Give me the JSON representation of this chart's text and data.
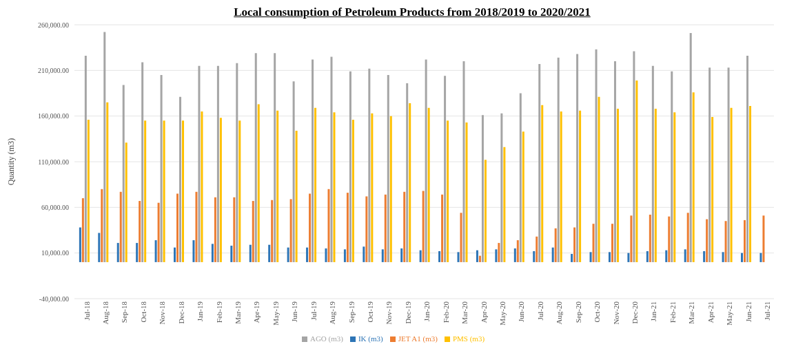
{
  "chart_data": {
    "type": "bar",
    "title": "Local consumption of Petroleum Products from 2018/2019 to 2020/2021",
    "ylabel": "Quantity (m3)",
    "categories": [
      "Jul-18",
      "Aug-18",
      "Sep-18",
      "Oct-18",
      "Nov-18",
      "Dec-18",
      "Jan-19",
      "Feb-19",
      "Mar-19",
      "Apr-19",
      "May-19",
      "Jun-19",
      "Jul-19",
      "Aug-19",
      "Sep-19",
      "Oct-19",
      "Nov-19",
      "Dec-19",
      "Jan-20",
      "Feb-20",
      "Mar-20",
      "Apr-20",
      "May-20",
      "Jun-20",
      "Jul-20",
      "Aug-20",
      "Sep-20",
      "Oct-20",
      "Nov-20",
      "Dec-20",
      "Jan-21",
      "Feb-21",
      "Mar-21",
      "Apr-21",
      "May-21",
      "Jun-21",
      "Jul-21"
    ],
    "series": [
      {
        "name": "IK (m3)",
        "color": "#2e75b6",
        "values": [
          38000,
          32000,
          21000,
          21000,
          24000,
          16000,
          24000,
          20000,
          18000,
          19000,
          19000,
          16000,
          16000,
          15000,
          14000,
          17000,
          14000,
          15000,
          13000,
          12000,
          11000,
          13000,
          14000,
          15000,
          12000,
          16000,
          9000,
          11000,
          11000,
          10000,
          12000,
          13000,
          14000,
          12000,
          11000,
          10000,
          10000
        ]
      },
      {
        "name": "JET A1 (m3)",
        "color": "#ed7d31",
        "values": [
          70000,
          80000,
          77000,
          67000,
          65000,
          75000,
          77000,
          71000,
          71000,
          67000,
          68000,
          69000,
          75000,
          80000,
          76000,
          72000,
          74000,
          77000,
          78000,
          74000,
          54000,
          7000,
          21000,
          24000,
          28000,
          37000,
          38000,
          42000,
          42000,
          51000,
          52000,
          50000,
          54000,
          47000,
          45000,
          46000,
          51000
        ]
      },
      {
        "name": "AGO (m3)",
        "color": "#a5a5a5",
        "values": [
          226000,
          252000,
          194000,
          219000,
          205000,
          181000,
          215000,
          215000,
          218000,
          229000,
          229000,
          198000,
          222000,
          225000,
          209000,
          212000,
          205000,
          196000,
          222000,
          204000,
          220000,
          161000,
          163000,
          185000,
          217000,
          224000,
          228000,
          233000,
          220000,
          231000,
          215000,
          209000,
          251000,
          213000,
          213000,
          226000,
          null
        ]
      },
      {
        "name": "PMS (m3)",
        "color": "#ffc000",
        "values": [
          156000,
          175000,
          131000,
          155000,
          155000,
          155000,
          165000,
          158000,
          155000,
          173000,
          166000,
          144000,
          169000,
          164000,
          156000,
          163000,
          160000,
          174000,
          169000,
          155000,
          153000,
          112000,
          126000,
          143000,
          172000,
          165000,
          166000,
          181000,
          168000,
          199000,
          168000,
          164000,
          186000,
          159000,
          169000,
          171000,
          null
        ]
      }
    ],
    "ylim": [
      -40000,
      260000
    ],
    "yticks": [
      {
        "value": -40000,
        "label": "-40,000.00"
      },
      {
        "value": 10000,
        "label": "10,000.00"
      },
      {
        "value": 60000,
        "label": "60,000.00"
      },
      {
        "value": 110000,
        "label": "110,000.00"
      },
      {
        "value": 160000,
        "label": "160,000.00"
      },
      {
        "value": 210000,
        "label": "210,000.00"
      },
      {
        "value": 260000,
        "label": "260,000.00"
      }
    ],
    "grid": "y",
    "legend": "bottom"
  }
}
